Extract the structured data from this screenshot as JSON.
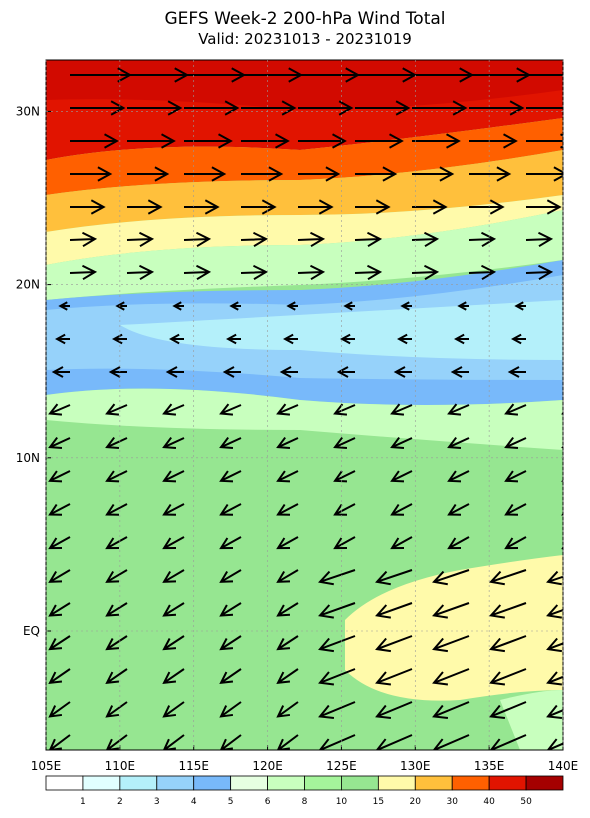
{
  "header": {
    "title": "GEFS Week-2 200-hPa Wind Total",
    "subtitle": "Valid: 20231013 - 20231019"
  },
  "map": {
    "lon_ticks": [
      {
        "value": 105,
        "label": "105E"
      },
      {
        "value": 110,
        "label": "110E"
      },
      {
        "value": 115,
        "label": "115E"
      },
      {
        "value": 120,
        "label": "120E"
      },
      {
        "value": 125,
        "label": "125E"
      },
      {
        "value": 130,
        "label": "130E"
      },
      {
        "value": 135,
        "label": "135E"
      },
      {
        "value": 140,
        "label": "140E"
      }
    ],
    "lat_ticks": [
      {
        "value": 30,
        "label": "30N"
      },
      {
        "value": 20,
        "label": "20N"
      },
      {
        "value": 10,
        "label": "10N"
      },
      {
        "value": 0,
        "label": "EQ"
      }
    ]
  },
  "colorbar": {
    "colors": [
      "#ffffff",
      "#e1ffff",
      "#b4f0fa",
      "#96d2fa",
      "#78b9fa",
      "#e6ffe1",
      "#c8ffbe",
      "#a5f59b",
      "#96e691",
      "#fffaaa",
      "#ffc03c",
      "#ff6000",
      "#e11400",
      "#a50000"
    ],
    "labels": [
      1,
      2,
      3,
      4,
      5,
      6,
      8,
      10,
      15,
      20,
      30,
      40,
      50
    ]
  }
}
